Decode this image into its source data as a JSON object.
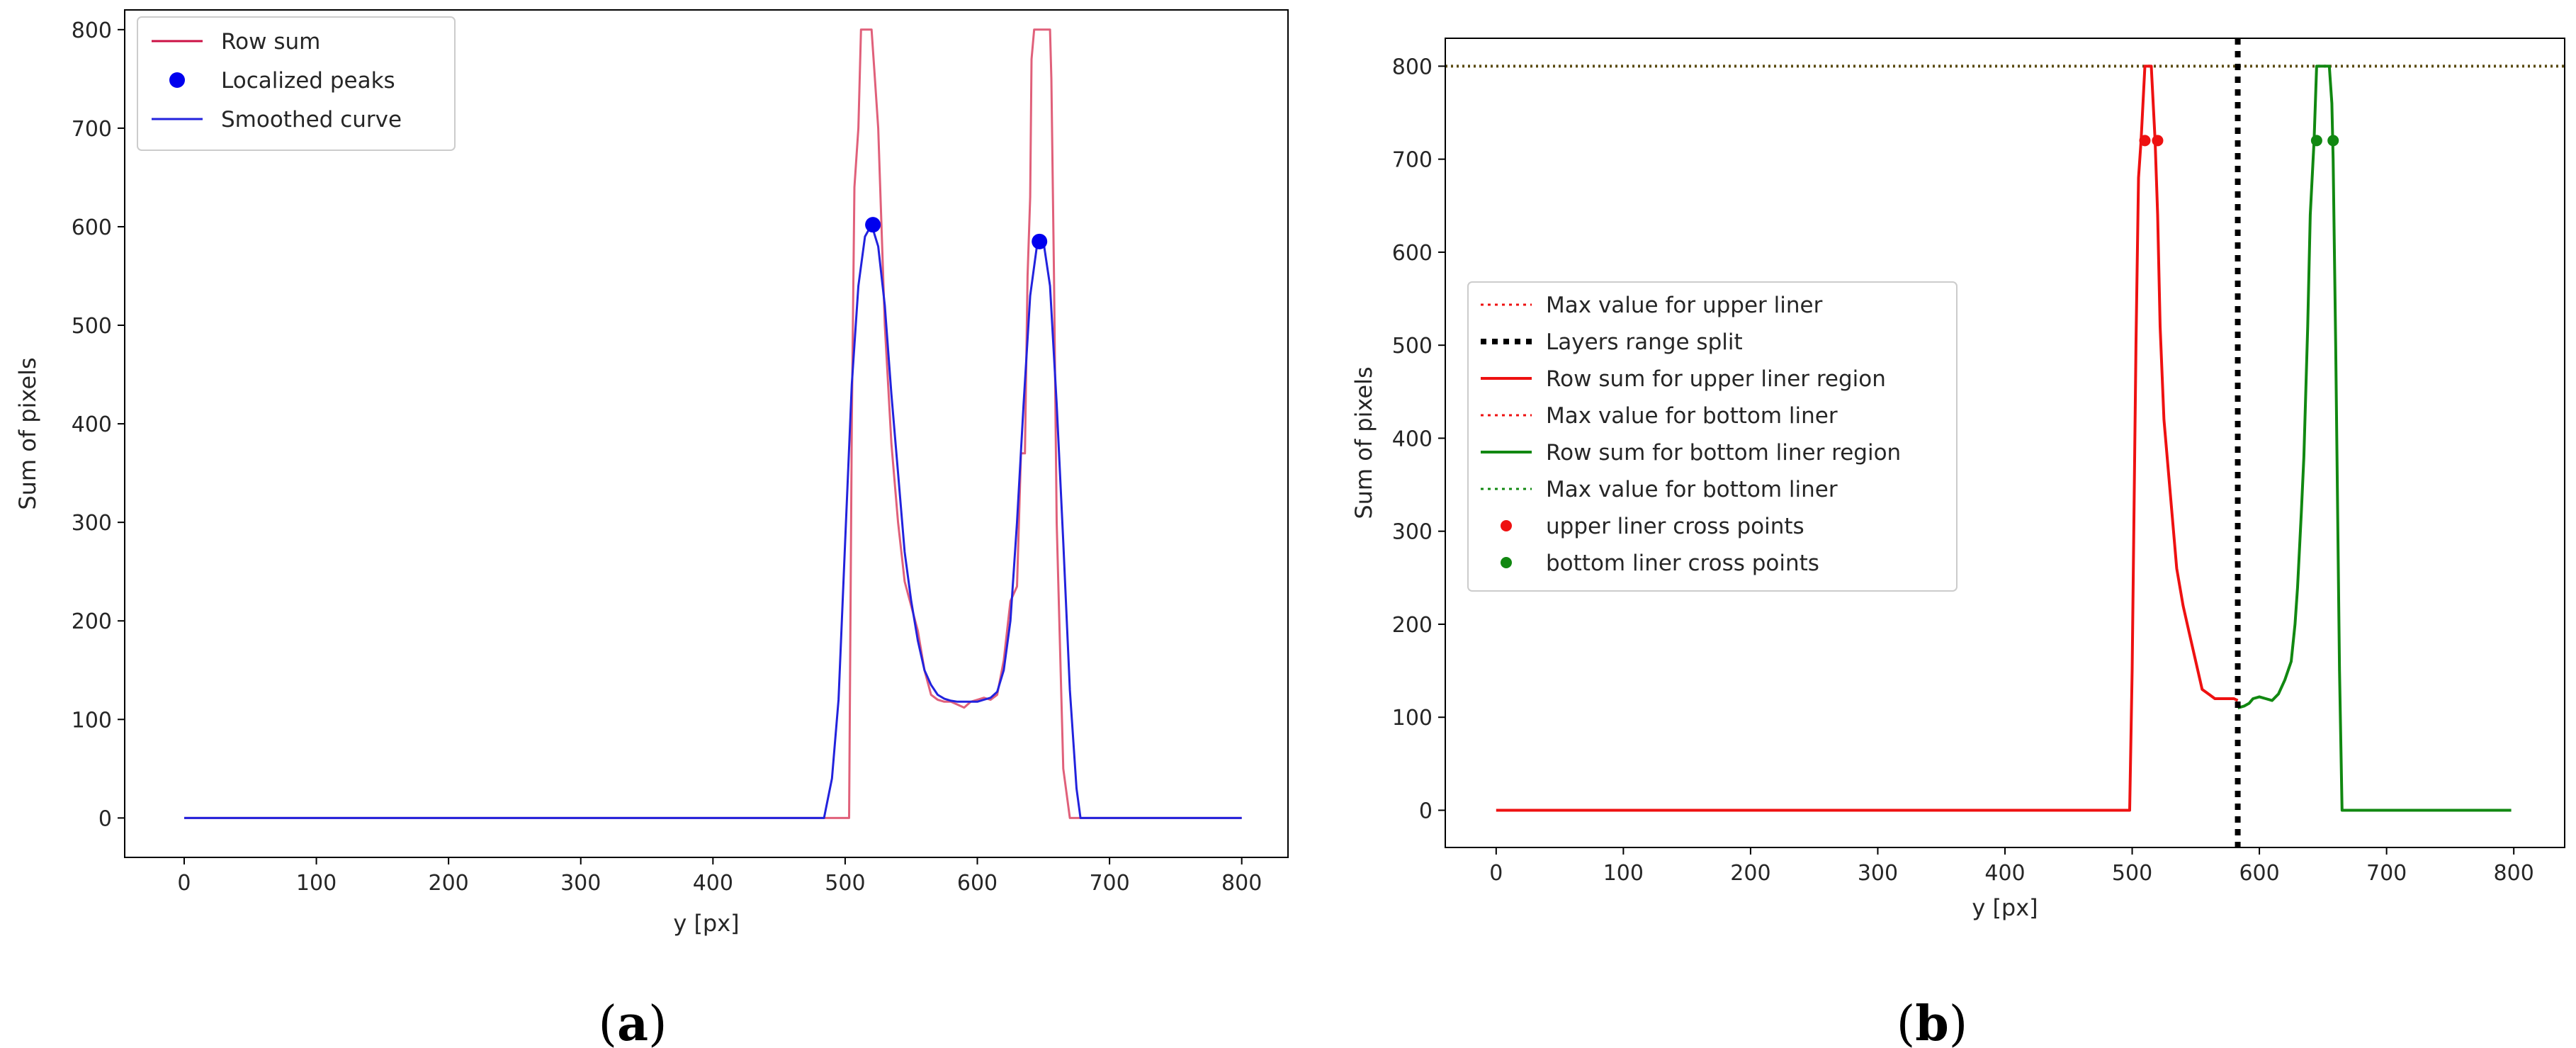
{
  "chart_data": [
    {
      "type": "line",
      "panel": "(a)",
      "panel_letter": "a",
      "xlabel": "y [px]",
      "ylabel": "Sum of pixels",
      "xlim": [
        -45,
        835
      ],
      "ylim": [
        -40,
        820
      ],
      "xticks": [
        0,
        100,
        200,
        300,
        400,
        500,
        600,
        700,
        800
      ],
      "yticks": [
        0,
        100,
        200,
        300,
        400,
        500,
        600,
        700,
        800
      ],
      "grid": false,
      "legend_position": "top-left",
      "colors": {
        "row_sum": "#e0607a",
        "smoothed": "#2222dd",
        "peaks": "#0000ee",
        "legend_row_sum": "#cc1144"
      },
      "series": [
        {
          "name": "Row sum",
          "style": "line",
          "x": [
            0,
            485,
            495,
            500,
            503,
            505,
            507,
            510,
            512,
            515,
            518,
            520,
            522,
            525,
            527,
            530,
            535,
            540,
            545,
            550,
            555,
            560,
            565,
            570,
            575,
            580,
            585,
            590,
            595,
            600,
            605,
            610,
            615,
            620,
            625,
            630,
            633,
            636,
            638,
            640,
            641,
            643,
            645,
            650,
            655,
            656,
            658,
            660,
            665,
            670,
            675,
            680,
            685,
            700,
            800
          ],
          "y": [
            0,
            0,
            0,
            0,
            0,
            400,
            640,
            700,
            800,
            800,
            800,
            800,
            760,
            700,
            620,
            500,
            380,
            300,
            240,
            215,
            190,
            150,
            125,
            120,
            118,
            118,
            115,
            112,
            118,
            120,
            122,
            120,
            125,
            160,
            220,
            235,
            370,
            370,
            550,
            630,
            770,
            800,
            800,
            800,
            800,
            750,
            550,
            300,
            50,
            0,
            0,
            0,
            0,
            0,
            0
          ]
        },
        {
          "name": "Smoothed curve",
          "style": "line",
          "x": [
            0,
            484,
            490,
            495,
            500,
            505,
            510,
            515,
            520,
            525,
            530,
            535,
            540,
            545,
            550,
            555,
            560,
            565,
            570,
            575,
            580,
            585,
            590,
            595,
            600,
            605,
            610,
            615,
            620,
            625,
            630,
            635,
            640,
            645,
            650,
            655,
            660,
            665,
            670,
            675,
            678,
            685,
            700,
            800
          ],
          "y": [
            0,
            0,
            40,
            120,
            280,
            440,
            540,
            590,
            602,
            580,
            520,
            430,
            350,
            270,
            220,
            180,
            150,
            135,
            125,
            121,
            119,
            118,
            118,
            118,
            118,
            120,
            122,
            128,
            150,
            200,
            300,
            420,
            530,
            580,
            585,
            540,
            420,
            280,
            130,
            30,
            0,
            0,
            0,
            0
          ]
        },
        {
          "name": "Localized peaks",
          "style": "markers",
          "x": [
            521,
            647
          ],
          "y": [
            602,
            585
          ]
        }
      ],
      "legend": [
        "Row sum",
        "Localized peaks",
        "Smoothed curve"
      ]
    },
    {
      "type": "line",
      "panel": "(b)",
      "panel_letter": "b",
      "xlabel": "y [px]",
      "ylabel": "Sum of pixels",
      "xlim": [
        -40,
        840
      ],
      "ylim": [
        -40,
        830
      ],
      "xticks": [
        0,
        100,
        200,
        300,
        400,
        500,
        600,
        700,
        800
      ],
      "yticks": [
        0,
        100,
        200,
        300,
        400,
        500,
        600,
        700,
        800
      ],
      "grid": false,
      "legend_position": "center-left",
      "colors": {
        "upper": "#ee1111",
        "bottom": "#118811",
        "split": "#000000",
        "max_line": "#5a4a10"
      },
      "series": [
        {
          "name": "Row sum for upper liner region",
          "style": "line",
          "x": [
            0,
            498,
            500,
            503,
            505,
            507,
            510,
            512,
            515,
            518,
            520,
            522,
            525,
            530,
            535,
            540,
            545,
            550,
            555,
            560,
            565,
            570,
            575,
            580,
            583
          ],
          "y": [
            0,
            0,
            150,
            500,
            680,
            720,
            800,
            800,
            800,
            720,
            640,
            520,
            420,
            340,
            260,
            220,
            190,
            160,
            130,
            125,
            120,
            120,
            120,
            120,
            118
          ]
        },
        {
          "name": "Row sum for bottom liner region",
          "style": "line",
          "x": [
            583,
            588,
            592,
            595,
            600,
            605,
            610,
            615,
            620,
            625,
            628,
            630,
            633,
            635,
            638,
            640,
            643,
            645,
            648,
            652,
            655,
            657,
            658,
            660,
            663,
            665,
            700,
            798
          ],
          "y": [
            110,
            112,
            115,
            120,
            122,
            120,
            118,
            125,
            140,
            160,
            200,
            240,
            320,
            380,
            520,
            640,
            720,
            800,
            800,
            800,
            800,
            760,
            700,
            500,
            150,
            0,
            0,
            0
          ]
        },
        {
          "name": "upper liner cross points",
          "style": "markers",
          "x": [
            510,
            520
          ],
          "y": [
            720,
            720
          ]
        },
        {
          "name": "bottom liner cross points",
          "style": "markers",
          "x": [
            645,
            658
          ],
          "y": [
            720,
            720
          ]
        }
      ],
      "hlines": [
        {
          "name": "Max value for upper liner",
          "y": 800
        },
        {
          "name": "Max value for bottom liner",
          "y": 800
        }
      ],
      "vlines": [
        {
          "name": "Layers range split",
          "x": 583
        }
      ],
      "legend": [
        "Max value for upper liner",
        "Layers range split",
        "Row sum for upper liner region",
        "Max value for bottom liner",
        "Row sum for bottom liner region",
        "Max value for bottom liner",
        "upper liner cross points",
        "bottom liner cross points"
      ]
    }
  ]
}
